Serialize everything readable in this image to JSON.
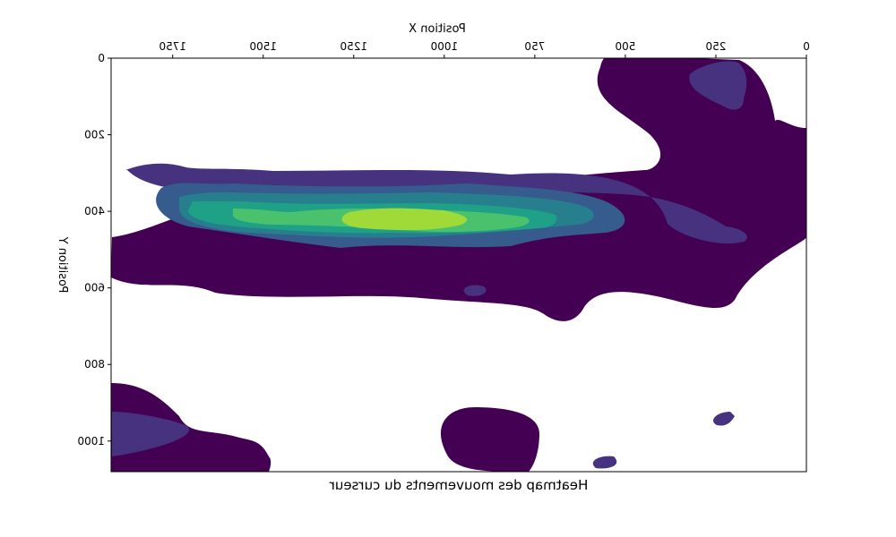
{
  "chart_data": {
    "type": "heatmap",
    "title": "Heatmap des mouvements du curseur",
    "xlabel": "Position X",
    "ylabel": "Position Y",
    "xlim": [
      0,
      1920
    ],
    "ylim": [
      0,
      1080
    ],
    "y_inverted": true,
    "image_mirrored_horizontally": true,
    "xticks": [
      0,
      250,
      500,
      750,
      1000,
      1250,
      1500,
      1750
    ],
    "xtick_labels": [
      "0",
      "250",
      "500",
      "750",
      "1000",
      "1250",
      "1500",
      "1750"
    ],
    "yticks": [
      0,
      200,
      400,
      600,
      800,
      1000
    ],
    "ytick_labels": [
      "0",
      "200",
      "400",
      "600",
      "800",
      "1000"
    ],
    "colormap": "viridis",
    "levels": 8,
    "level_colors": [
      "#440154",
      "#46327e",
      "#365c8d",
      "#277f8e",
      "#1fa187",
      "#4ac16d",
      "#a0da39",
      "#fde725"
    ],
    "density_peaks": [
      {
        "x": 480,
        "y": 425
      },
      {
        "x": 1450,
        "y": 440
      },
      {
        "x": 1000,
        "y": 600
      },
      {
        "x": 1860,
        "y": 980
      },
      {
        "x": 1400,
        "y": 1050
      },
      {
        "x": 350,
        "y": 100
      }
    ]
  }
}
